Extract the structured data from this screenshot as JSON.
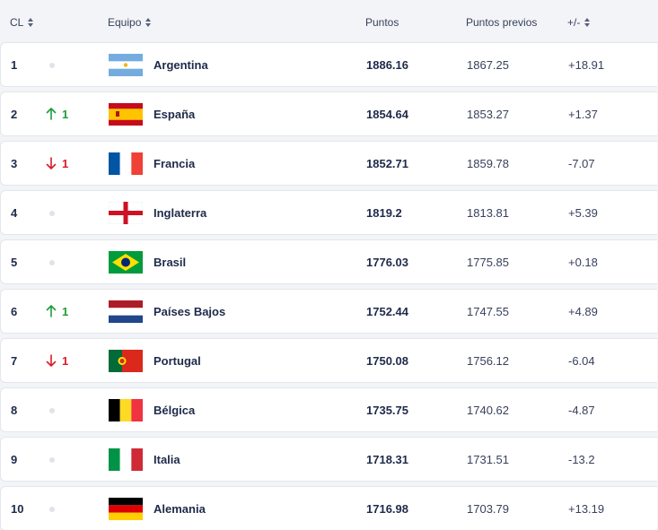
{
  "header": {
    "rank_label": "CL",
    "team_label": "Equipo",
    "points_label": "Puntos",
    "prev_label": "Puntos previos",
    "diff_label": "+/-"
  },
  "colors": {
    "up": "#1f9d3a",
    "down": "#d91c2a",
    "neutral_dot": "#dfe3ea"
  },
  "rows": [
    {
      "rank": "1",
      "move": "none",
      "move_value": "",
      "team": "Argentina",
      "flag": "argentina-flag-icon",
      "points": "1886.16",
      "prev": "1867.25",
      "diff": "+18.91"
    },
    {
      "rank": "2",
      "move": "up",
      "move_value": "1",
      "team": "España",
      "flag": "spain-flag-icon",
      "points": "1854.64",
      "prev": "1853.27",
      "diff": "+1.37"
    },
    {
      "rank": "3",
      "move": "down",
      "move_value": "1",
      "team": "Francia",
      "flag": "france-flag-icon",
      "points": "1852.71",
      "prev": "1859.78",
      "diff": "-7.07"
    },
    {
      "rank": "4",
      "move": "none",
      "move_value": "",
      "team": "Inglaterra",
      "flag": "england-flag-icon",
      "points": "1819.2",
      "prev": "1813.81",
      "diff": "+5.39"
    },
    {
      "rank": "5",
      "move": "none",
      "move_value": "",
      "team": "Brasil",
      "flag": "brazil-flag-icon",
      "points": "1776.03",
      "prev": "1775.85",
      "diff": "+0.18"
    },
    {
      "rank": "6",
      "move": "up",
      "move_value": "1",
      "team": "Países Bajos",
      "flag": "netherlands-flag-icon",
      "points": "1752.44",
      "prev": "1747.55",
      "diff": "+4.89"
    },
    {
      "rank": "7",
      "move": "down",
      "move_value": "1",
      "team": "Portugal",
      "flag": "portugal-flag-icon",
      "points": "1750.08",
      "prev": "1756.12",
      "diff": "-6.04"
    },
    {
      "rank": "8",
      "move": "none",
      "move_value": "",
      "team": "Bélgica",
      "flag": "belgium-flag-icon",
      "points": "1735.75",
      "prev": "1740.62",
      "diff": "-4.87"
    },
    {
      "rank": "9",
      "move": "none",
      "move_value": "",
      "team": "Italia",
      "flag": "italy-flag-icon",
      "points": "1718.31",
      "prev": "1731.51",
      "diff": "-13.2"
    },
    {
      "rank": "10",
      "move": "none",
      "move_value": "",
      "team": "Alemania",
      "flag": "germany-flag-icon",
      "points": "1716.98",
      "prev": "1703.79",
      "diff": "+13.19"
    }
  ]
}
